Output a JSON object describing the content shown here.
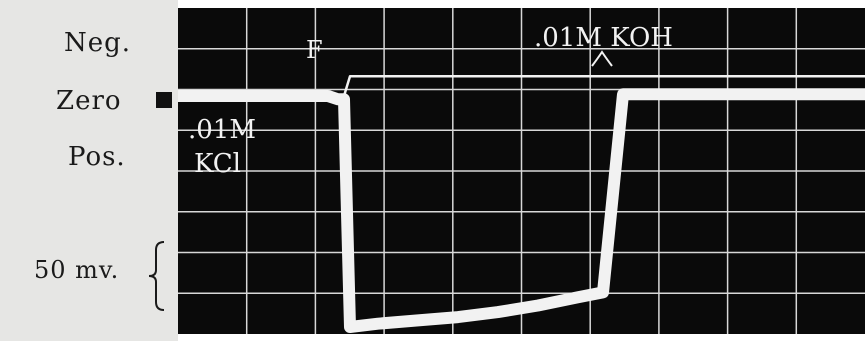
{
  "labels": {
    "neg": "Neg.",
    "zero": "Zero",
    "pos": "Pos.",
    "scale": "50 mv."
  },
  "annotations": {
    "kcl_conc": ".01M",
    "kcl_name": "KCl",
    "f_mark": "F",
    "koh": ".01M KOH"
  },
  "colors": {
    "background": "#0a0a0a",
    "grid": "#d8d8d8",
    "trace": "#f2f2f2"
  },
  "chart_data": {
    "type": "line",
    "title": "",
    "xlabel": "",
    "ylabel": "",
    "grid": true,
    "y_scale_bar_mv": 50,
    "series": [
      {
        "values": [
          0,
          0,
          0,
          0,
          0,
          0,
          0,
          3,
          3,
          3,
          3,
          3,
          3,
          3,
          3,
          3,
          3,
          3,
          3,
          3,
          3,
          3
        ]
      },
      {
        "values": [
          0,
          0,
          0,
          0,
          0,
          -2,
          -2,
          -140,
          -138,
          -136,
          -134,
          -131,
          -127,
          -122,
          -119,
          1,
          1,
          1,
          1,
          1,
          1,
          1
        ]
      }
    ]
  }
}
